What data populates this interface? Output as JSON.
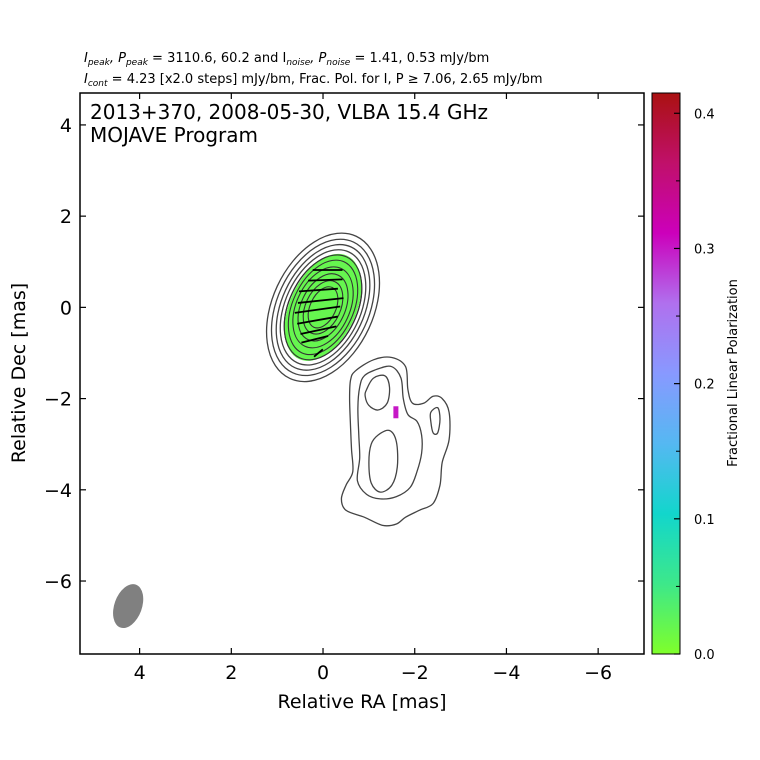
{
  "chart_data": {
    "type": "contour",
    "title_line1": {
      "a": "I",
      "a_sub": "peak",
      "b": ", P",
      "b_sub": "peak",
      "c": " = 3110.6, 60.2 and I",
      "c_sub": "noise",
      "d": ", P",
      "d_sub": "noise",
      "e": " = 1.41, 0.53 mJy/bm"
    },
    "title_line2": {
      "a": "I",
      "a_sub": "cont",
      "b": " = 4.23 [x2.0 steps] mJy/bm, Frac. Pol. for I, P ≥ 7.06, 2.65 mJy/bm"
    },
    "annotation": [
      "2013+370, 2008-05-30, VLBA 15.4 GHz",
      "MOJAVE Program"
    ],
    "xlabel": "Relative RA [mas]",
    "ylabel": "Relative Dec [mas]",
    "xlim": [
      5.3,
      -7.0
    ],
    "ylim": [
      -7.6,
      4.7
    ],
    "xticks": [
      4,
      2,
      0,
      -2,
      -4,
      -6
    ],
    "xtick_labels": [
      "4",
      "2",
      "0",
      "−2",
      "−4",
      "−6"
    ],
    "yticks": [
      4,
      2,
      0,
      -2,
      -4,
      -6
    ],
    "ytick_labels": [
      "4",
      "2",
      "0",
      "−2",
      "−4",
      "−6"
    ],
    "colorbar": {
      "label": "Fractional Linear Polarization",
      "range": [
        0.0,
        0.415
      ],
      "ticks": [
        0.0,
        0.1,
        0.2,
        0.3,
        0.4
      ],
      "tick_labels": [
        "0.0",
        "0.1",
        "0.2",
        "0.3",
        "0.4"
      ],
      "colors": [
        "#7fff2a",
        "#3de88a",
        "#12d6cc",
        "#55b8f2",
        "#8899ff",
        "#b070ee",
        "#cc00bb",
        "#c0106a",
        "#aa1111"
      ]
    },
    "core": {
      "x": 0.0,
      "y": 0.0,
      "angle_deg": 25,
      "contour_semi_axes": [
        [
          0.28,
          0.48
        ],
        [
          0.38,
          0.62
        ],
        [
          0.48,
          0.78
        ],
        [
          0.58,
          0.94
        ],
        [
          0.66,
          1.1
        ],
        [
          0.74,
          1.22
        ],
        [
          0.82,
          1.34
        ],
        [
          0.9,
          1.46
        ],
        [
          1.0,
          1.58
        ],
        [
          1.1,
          1.72
        ]
      ],
      "pol_region": {
        "semi_axes": [
          0.72,
          1.25
        ],
        "frac_pol": 0.02
      },
      "evpa_ticks": [
        {
          "x": -0.1,
          "y": 0.82,
          "len": 0.65,
          "angle": 0
        },
        {
          "x": -0.05,
          "y": 0.6,
          "len": 0.75,
          "angle": 2
        },
        {
          "x": 0.1,
          "y": 0.38,
          "len": 0.85,
          "angle": 4
        },
        {
          "x": 0.05,
          "y": 0.15,
          "len": 1.0,
          "angle": 6
        },
        {
          "x": 0.12,
          "y": -0.05,
          "len": 1.0,
          "angle": 8
        },
        {
          "x": 0.12,
          "y": -0.28,
          "len": 0.9,
          "angle": 10
        },
        {
          "x": 0.1,
          "y": -0.5,
          "len": 0.8,
          "angle": 12
        },
        {
          "x": 0.18,
          "y": -0.7,
          "len": 0.6,
          "angle": 14
        },
        {
          "x": 0.1,
          "y": -1.0,
          "len": 0.25,
          "angle": 40
        }
      ]
    },
    "jet_contours": [
      [
        [
          -0.7,
          -1.4
        ],
        [
          -1.1,
          -1.15
        ],
        [
          -1.5,
          -1.1
        ],
        [
          -1.8,
          -1.3
        ],
        [
          -1.85,
          -1.8
        ],
        [
          -1.95,
          -2.1
        ],
        [
          -2.2,
          -2.1
        ],
        [
          -2.4,
          -1.95
        ],
        [
          -2.6,
          -2.0
        ],
        [
          -2.75,
          -2.3
        ],
        [
          -2.75,
          -2.9
        ],
        [
          -2.6,
          -3.4
        ],
        [
          -2.55,
          -3.9
        ],
        [
          -2.4,
          -4.3
        ],
        [
          -2.1,
          -4.45
        ],
        [
          -1.8,
          -4.6
        ],
        [
          -1.6,
          -4.75
        ],
        [
          -1.3,
          -4.78
        ],
        [
          -0.9,
          -4.6
        ],
        [
          -0.5,
          -4.45
        ],
        [
          -0.4,
          -4.2
        ],
        [
          -0.5,
          -3.9
        ],
        [
          -0.65,
          -3.6
        ],
        [
          -0.62,
          -3.1
        ],
        [
          -0.6,
          -2.6
        ],
        [
          -0.58,
          -2.0
        ],
        [
          -0.6,
          -1.6
        ]
      ],
      [
        [
          -0.9,
          -1.5
        ],
        [
          -1.2,
          -1.35
        ],
        [
          -1.5,
          -1.3
        ],
        [
          -1.7,
          -1.55
        ],
        [
          -1.75,
          -2.0
        ],
        [
          -1.85,
          -2.35
        ],
        [
          -2.05,
          -2.5
        ],
        [
          -2.15,
          -2.8
        ],
        [
          -2.15,
          -3.2
        ],
        [
          -2.05,
          -3.6
        ],
        [
          -1.9,
          -3.95
        ],
        [
          -1.6,
          -4.15
        ],
        [
          -1.25,
          -4.2
        ],
        [
          -0.95,
          -4.1
        ],
        [
          -0.75,
          -3.8
        ],
        [
          -0.8,
          -3.3
        ],
        [
          -0.78,
          -2.8
        ],
        [
          -0.76,
          -2.2
        ],
        [
          -0.8,
          -1.75
        ]
      ],
      [
        [
          -0.95,
          -1.8
        ],
        [
          -1.1,
          -1.55
        ],
        [
          -1.35,
          -1.5
        ],
        [
          -1.45,
          -1.75
        ],
        [
          -1.4,
          -2.1
        ],
        [
          -1.2,
          -2.25
        ],
        [
          -1.0,
          -2.15
        ],
        [
          -0.92,
          -1.95
        ]
      ],
      [
        [
          -1.2,
          -2.8
        ],
        [
          -1.45,
          -2.7
        ],
        [
          -1.6,
          -2.95
        ],
        [
          -1.62,
          -3.5
        ],
        [
          -1.5,
          -3.9
        ],
        [
          -1.25,
          -4.05
        ],
        [
          -1.05,
          -3.85
        ],
        [
          -1.0,
          -3.4
        ],
        [
          -1.05,
          -3.0
        ]
      ],
      [
        [
          -2.35,
          -2.3
        ],
        [
          -2.5,
          -2.2
        ],
        [
          -2.55,
          -2.45
        ],
        [
          -2.5,
          -2.75
        ],
        [
          -2.4,
          -2.75
        ],
        [
          -2.35,
          -2.5
        ]
      ]
    ],
    "knot_pixel": {
      "x": -1.6,
      "y": -2.3,
      "frac_pol": 0.3
    },
    "beam": {
      "x": 4.25,
      "y": -6.55,
      "major_mas": 1.0,
      "minor_mas": 0.6,
      "angle_deg": 20,
      "color": "#808080"
    }
  }
}
